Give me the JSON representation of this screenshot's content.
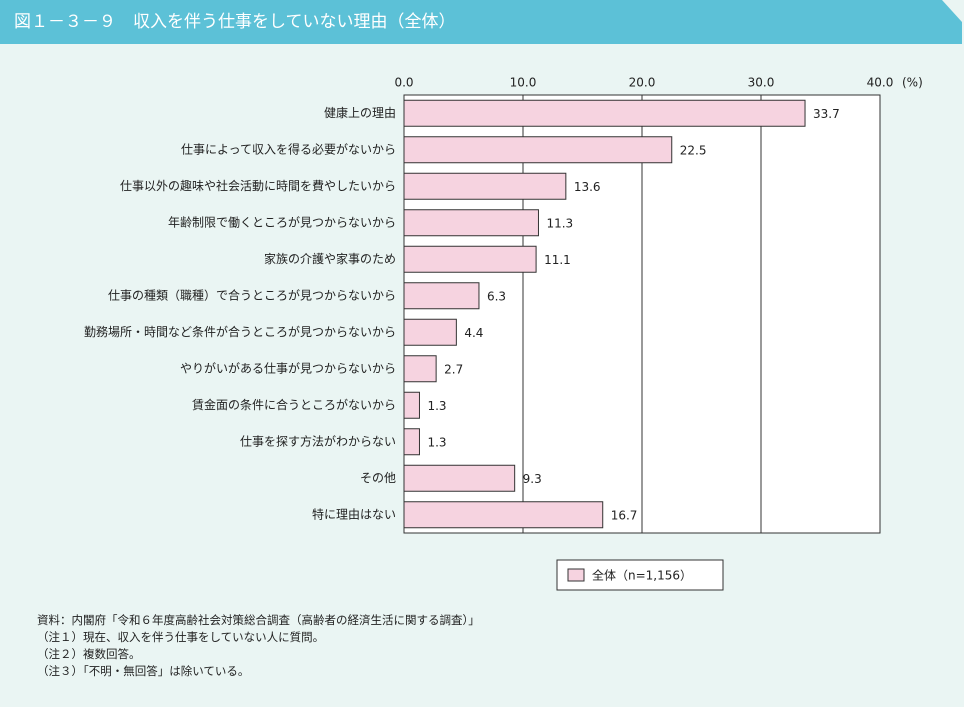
{
  "chart_data": {
    "type": "bar",
    "orientation": "horizontal",
    "title": "図１－３－９　収入を伴う仕事をしていない理由（全体）",
    "xlabel": "(%)",
    "categories": [
      "健康上の理由",
      "仕事によって収入を得る必要がないから",
      "仕事以外の趣味や社会活動に時間を費やしたいから",
      "年齢制限で働くところが見つからないから",
      "家族の介護や家事のため",
      "仕事の種類（職種）で合うところが見つからないから",
      "勤務場所・時間など条件が合うところが見つからないから",
      "やりがいがある仕事が見つからないから",
      "賃金面の条件に合うところがないから",
      "仕事を探す方法がわからない",
      "その他",
      "特に理由はない"
    ],
    "series": [
      {
        "name": "全体（n=1,156）",
        "color": "#f6d3e0",
        "values": [
          33.7,
          22.5,
          13.6,
          11.3,
          11.1,
          6.3,
          4.4,
          2.7,
          1.3,
          1.3,
          9.3,
          16.7
        ]
      }
    ],
    "xlim": [
      0,
      40
    ],
    "xticks": [
      {
        "value": 0,
        "label": "0.0"
      },
      {
        "value": 10,
        "label": "10.0"
      },
      {
        "value": 20,
        "label": "20.0"
      },
      {
        "value": 30,
        "label": "30.0"
      },
      {
        "value": 40,
        "label": "40.0"
      }
    ],
    "grid": true,
    "legend": "bottom"
  },
  "notes": [
    "資料：内閣府「令和６年度高齢社会対策総合調査（高齢者の経済生活に関する調査）」",
    "（注１）現在、収入を伴う仕事をしていない人に質問。",
    "（注２）複数回答。",
    "（注３）「不明・無回答」は除いている。"
  ]
}
